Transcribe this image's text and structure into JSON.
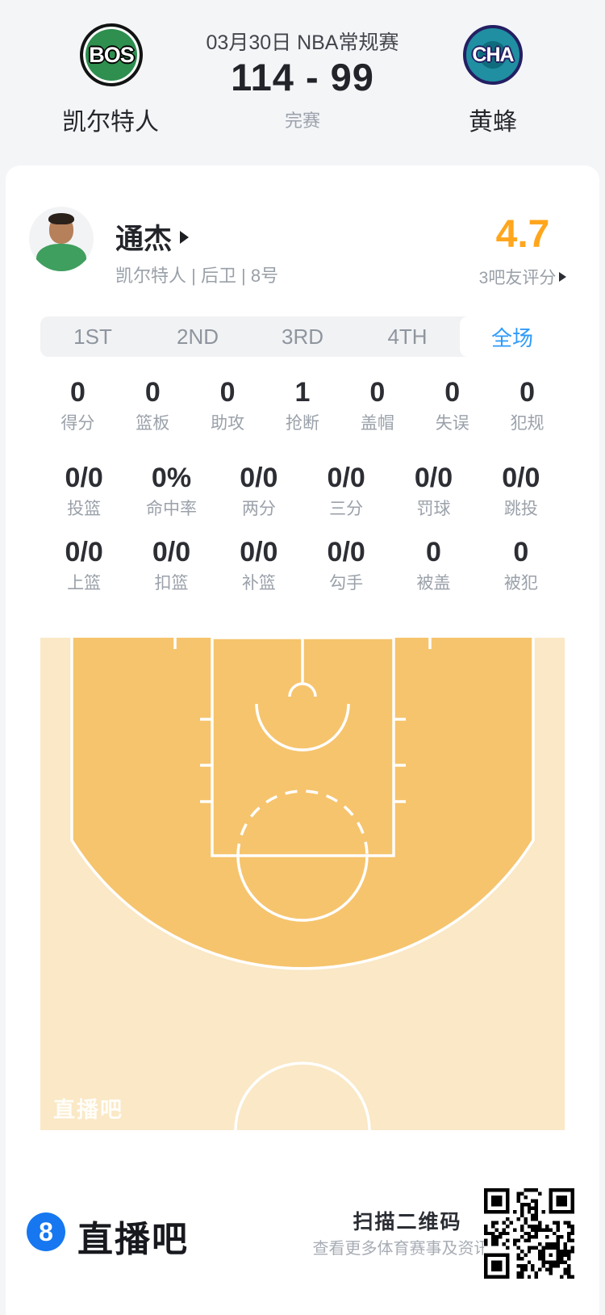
{
  "header": {
    "date_title": "03月30日 NBA常规赛",
    "score": "114 - 99",
    "status": "完赛",
    "home": {
      "abbr": "BOS",
      "name": "凯尔特人"
    },
    "away": {
      "abbr": "CHA",
      "name": "黄蜂"
    }
  },
  "player": {
    "name": "通杰",
    "info": "凯尔特人 | 后卫 | 8号",
    "rating": "4.7",
    "rating_label": "3吧友评分"
  },
  "tabs": {
    "items": [
      "1ST",
      "2ND",
      "3RD",
      "4TH",
      "全场"
    ],
    "active": "全场"
  },
  "stats": {
    "row1": [
      {
        "value": "0",
        "label": "得分"
      },
      {
        "value": "0",
        "label": "篮板"
      },
      {
        "value": "0",
        "label": "助攻"
      },
      {
        "value": "1",
        "label": "抢断"
      },
      {
        "value": "0",
        "label": "盖帽"
      },
      {
        "value": "0",
        "label": "失误"
      },
      {
        "value": "0",
        "label": "犯规"
      }
    ],
    "row2": [
      {
        "value": "0/0",
        "label": "投篮"
      },
      {
        "value": "0%",
        "label": "命中率"
      },
      {
        "value": "0/0",
        "label": "两分"
      },
      {
        "value": "0/0",
        "label": "三分"
      },
      {
        "value": "0/0",
        "label": "罚球"
      },
      {
        "value": "0/0",
        "label": "跳投"
      }
    ],
    "row3": [
      {
        "value": "0/0",
        "label": "上篮"
      },
      {
        "value": "0/0",
        "label": "扣篮"
      },
      {
        "value": "0/0",
        "label": "补篮"
      },
      {
        "value": "0/0",
        "label": "勾手"
      },
      {
        "value": "0",
        "label": "被盖"
      },
      {
        "value": "0",
        "label": "被犯"
      }
    ]
  },
  "court": {
    "watermark": "直播吧",
    "color_inner": "#f6c46d",
    "color_outer": "#fae8c6"
  },
  "footer": {
    "logo_char": "8",
    "brand": "直播吧",
    "qr_title": "扫描二维码",
    "qr_subtitle": "查看更多体育赛事及资讯"
  },
  "colors": {
    "accent_blue": "#2f9bfa",
    "rating_orange": "#ffa61d",
    "page_bg": "#f4f5f7",
    "logo_bos_green": "#2e8f4f",
    "logo_cha_teal": "#1f8fa1",
    "brand_blue": "#1677f0"
  }
}
